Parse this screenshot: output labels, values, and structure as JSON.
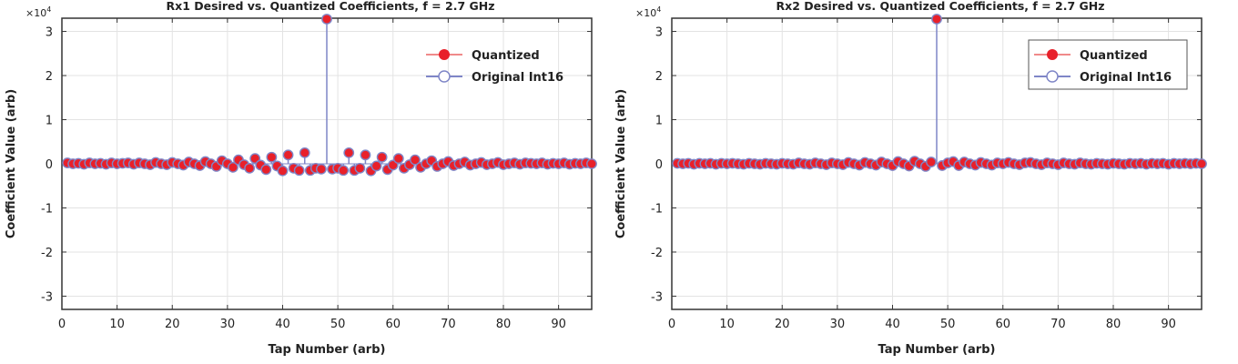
{
  "chart_data": [
    {
      "type": "scatter",
      "title": "Rx1 Desired vs. Quantized Coefficients, f = 2.7 GHz",
      "xlabel": "Tap Number (arb)",
      "ylabel": "Coefficient Value (arb)",
      "y_exponent": "×10",
      "y_exponent_power": "4",
      "xlim": [
        0,
        96
      ],
      "ylim": [
        -3.3,
        3.3
      ],
      "xticks": [
        "0",
        "10",
        "20",
        "30",
        "40",
        "50",
        "60",
        "70",
        "80",
        "90"
      ],
      "yticks": [
        "3",
        "2",
        "1",
        "0",
        "-1",
        "-2",
        "-3"
      ],
      "grid": true,
      "legend_box": false,
      "legend_position": "top-right",
      "series": [
        {
          "name": "Quantized",
          "color": "#e8202a",
          "marker": "filled-circle"
        },
        {
          "name": "Original Int16",
          "color": "#7f86c7",
          "marker": "open-circle"
        }
      ],
      "x": [
        1,
        2,
        3,
        4,
        5,
        6,
        7,
        8,
        9,
        10,
        11,
        12,
        13,
        14,
        15,
        16,
        17,
        18,
        19,
        20,
        21,
        22,
        23,
        24,
        25,
        26,
        27,
        28,
        29,
        30,
        31,
        32,
        33,
        34,
        35,
        36,
        37,
        38,
        39,
        40,
        41,
        42,
        43,
        44,
        45,
        46,
        47,
        48,
        49,
        50,
        51,
        52,
        53,
        54,
        55,
        56,
        57,
        58,
        59,
        60,
        61,
        62,
        63,
        64,
        65,
        66,
        67,
        68,
        69,
        70,
        71,
        72,
        73,
        74,
        75,
        76,
        77,
        78,
        79,
        80,
        81,
        82,
        83,
        84,
        85,
        86,
        87,
        88,
        89,
        90,
        91,
        92,
        93,
        94,
        95,
        96
      ],
      "values": [
        0.02,
        0,
        0.01,
        -0.01,
        0.02,
        0,
        0.01,
        -0.01,
        0.02,
        0,
        0.01,
        0.02,
        -0.01,
        0.02,
        0,
        -0.02,
        0.03,
        0,
        -0.02,
        0.03,
        0,
        -0.03,
        0.04,
        0,
        -0.04,
        0.05,
        0,
        -0.06,
        0.07,
        0,
        -0.08,
        0.09,
        -0.02,
        -0.1,
        0.12,
        -0.03,
        -0.13,
        0.15,
        -0.05,
        -0.16,
        0.2,
        -0.1,
        -0.15,
        0.25,
        -0.15,
        -0.1,
        -0.12,
        3.28,
        -0.12,
        -0.1,
        -0.15,
        0.25,
        -0.15,
        -0.1,
        0.2,
        -0.16,
        -0.05,
        0.15,
        -0.13,
        -0.03,
        0.12,
        -0.1,
        -0.02,
        0.09,
        -0.08,
        0,
        0.07,
        -0.06,
        0,
        0.05,
        -0.04,
        0,
        0.04,
        -0.03,
        0,
        0.03,
        -0.02,
        0,
        0.03,
        -0.02,
        0,
        0.02,
        -0.01,
        0.02,
        0.01,
        0,
        0.02,
        -0.01,
        0.01,
        0,
        0.02,
        -0.01,
        0.01,
        0,
        0.02,
        0
      ]
    },
    {
      "type": "scatter",
      "title": "Rx2 Desired vs. Quantized Coefficients, f = 2.7 GHz",
      "xlabel": "Tap Number (arb)",
      "ylabel": "Coefficient Value (arb)",
      "y_exponent": "×10",
      "y_exponent_power": "4",
      "xlim": [
        0,
        96
      ],
      "ylim": [
        -3.3,
        3.3
      ],
      "xticks": [
        "0",
        "10",
        "20",
        "30",
        "40",
        "50",
        "60",
        "70",
        "80",
        "90"
      ],
      "yticks": [
        "3",
        "2",
        "1",
        "0",
        "-1",
        "-2",
        "-3"
      ],
      "grid": true,
      "legend_box": true,
      "legend_position": "top-right",
      "series": [
        {
          "name": "Quantized",
          "color": "#e8202a",
          "marker": "filled-circle"
        },
        {
          "name": "Original Int16",
          "color": "#7f86c7",
          "marker": "open-circle"
        }
      ],
      "x": [
        1,
        2,
        3,
        4,
        5,
        6,
        7,
        8,
        9,
        10,
        11,
        12,
        13,
        14,
        15,
        16,
        17,
        18,
        19,
        20,
        21,
        22,
        23,
        24,
        25,
        26,
        27,
        28,
        29,
        30,
        31,
        32,
        33,
        34,
        35,
        36,
        37,
        38,
        39,
        40,
        41,
        42,
        43,
        44,
        45,
        46,
        47,
        48,
        49,
        50,
        51,
        52,
        53,
        54,
        55,
        56,
        57,
        58,
        59,
        60,
        61,
        62,
        63,
        64,
        65,
        66,
        67,
        68,
        69,
        70,
        71,
        72,
        73,
        74,
        75,
        76,
        77,
        78,
        79,
        80,
        81,
        82,
        83,
        84,
        85,
        86,
        87,
        88,
        89,
        90,
        91,
        92,
        93,
        94,
        95,
        96
      ],
      "values": [
        0.01,
        0,
        0.01,
        -0.01,
        0.01,
        0,
        0.01,
        -0.01,
        0.01,
        0,
        0.01,
        0,
        -0.01,
        0.01,
        0,
        -0.01,
        0.01,
        0,
        -0.01,
        0.01,
        0,
        -0.01,
        0.02,
        0,
        -0.01,
        0.02,
        0,
        -0.02,
        0.02,
        0,
        -0.02,
        0.03,
        0,
        -0.03,
        0.03,
        0,
        -0.03,
        0.04,
        0,
        -0.04,
        0.05,
        0,
        -0.05,
        0.06,
        0,
        -0.06,
        0.04,
        3.28,
        -0.04,
        0.02,
        0.05,
        -0.04,
        0.04,
        0,
        -0.03,
        0.03,
        0,
        -0.03,
        0.02,
        0,
        0.03,
        0,
        -0.02,
        0.02,
        0.03,
        0,
        -0.02,
        0.02,
        0,
        -0.02,
        0.02,
        0,
        -0.01,
        0.02,
        0,
        -0.01,
        0.01,
        0,
        -0.01,
        0.01,
        0,
        -0.01,
        0.01,
        0,
        0.01,
        -0.01,
        0.01,
        0,
        0.01,
        -0.01,
        0.01,
        0,
        0.01,
        0,
        0.01,
        0
      ]
    }
  ]
}
